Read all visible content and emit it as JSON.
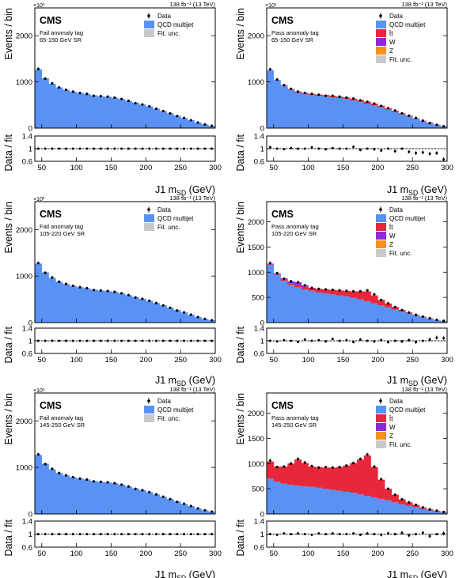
{
  "figure": {
    "experiment": "CMS",
    "lumi": "138 fb⁻¹ (13 TeV)",
    "scale_exp": "×10³",
    "ratio_ylabel": "Data / fit",
    "colors": {
      "qcd": "#5a92f4",
      "ttbar": "#e8283a",
      "w": "#8e2bd8",
      "z": "#f5921e",
      "unc": "#c9c9c9",
      "data": "#000000"
    }
  },
  "chart_data": [
    {
      "type": "bar",
      "title": "",
      "tag": "Fail anomaly tag",
      "window": "65-150 GeV SR",
      "xlabel": "J1 m_SD (GeV)",
      "ylabel": "Events / bin",
      "xlim": [
        40,
        300
      ],
      "ylim": [
        0,
        2600
      ],
      "yticks": [
        0,
        1000,
        2000
      ],
      "xticks": [
        50,
        100,
        150,
        200,
        250,
        300
      ],
      "ratio_ylim": [
        0.6,
        1.4
      ],
      "ratio_yticks": [
        0.6,
        1,
        1.4
      ],
      "legend": [
        "Data",
        "QCD multijet",
        "Fit. unc."
      ],
      "bin_edges": [
        40,
        50,
        60,
        70,
        80,
        90,
        100,
        110,
        120,
        130,
        140,
        150,
        160,
        170,
        180,
        190,
        200,
        210,
        220,
        230,
        240,
        250,
        260,
        270,
        280,
        290,
        300
      ],
      "series": [
        {
          "name": "QCD multijet",
          "values": [
            1270,
            1080,
            960,
            880,
            830,
            790,
            760,
            740,
            710,
            690,
            680,
            660,
            630,
            590,
            550,
            510,
            470,
            420,
            370,
            320,
            270,
            220,
            170,
            120,
            80,
            50
          ]
        }
      ],
      "data_points": [
        1280,
        1070,
        970,
        880,
        830,
        790,
        760,
        740,
        700,
        690,
        680,
        660,
        630,
        590,
        540,
        510,
        470,
        420,
        370,
        320,
        260,
        220,
        170,
        120,
        80,
        50
      ],
      "ratio": [
        1.0,
        1.0,
        1.0,
        1.0,
        1.0,
        1.0,
        1.0,
        1.0,
        1.0,
        1.0,
        1.0,
        1.0,
        1.0,
        1.0,
        1.0,
        1.0,
        1.0,
        1.0,
        1.0,
        1.0,
        1.0,
        1.0,
        1.0,
        1.0,
        1.0,
        1.0
      ]
    },
    {
      "type": "bar",
      "title": "",
      "tag": "Pass anomaly tag",
      "window": "65-150 GeV SR",
      "xlabel": "J1 m_SD (GeV)",
      "ylabel": "Events / bin",
      "xlim": [
        40,
        300
      ],
      "ylim": [
        0,
        2600
      ],
      "yticks": [
        0,
        1000,
        2000
      ],
      "xticks": [
        50,
        100,
        150,
        200,
        250,
        300
      ],
      "ratio_ylim": [
        0.6,
        1.4
      ],
      "ratio_yticks": [
        0.6,
        1,
        1.4
      ],
      "legend": [
        "Data",
        "QCD multijet",
        "t̄t",
        "W",
        "Z",
        "Fit. unc."
      ],
      "bin_edges": [
        40,
        50,
        60,
        70,
        80,
        90,
        100,
        110,
        120,
        130,
        140,
        150,
        160,
        170,
        180,
        190,
        200,
        210,
        220,
        230,
        240,
        250,
        260,
        270,
        280,
        290,
        300
      ],
      "series": [
        {
          "name": "QCD multijet",
          "values": [
            1250,
            1040,
            920,
            830,
            770,
            740,
            720,
            700,
            690,
            670,
            650,
            630,
            600,
            570,
            530,
            490,
            450,
            400,
            350,
            300,
            250,
            200,
            150,
            110,
            70,
            40
          ]
        },
        {
          "name": "t̄t",
          "values": [
            5,
            5,
            10,
            15,
            20,
            20,
            20,
            25,
            25,
            30,
            30,
            30,
            35,
            35,
            40,
            40,
            35,
            30,
            25,
            20,
            20,
            15,
            10,
            10,
            5,
            5
          ]
        },
        {
          "name": "W",
          "values": [
            0,
            0,
            0,
            2,
            5,
            4,
            0,
            0,
            0,
            0,
            0,
            0,
            0,
            0,
            0,
            0,
            0,
            0,
            0,
            0,
            0,
            0,
            0,
            0,
            0,
            0
          ]
        },
        {
          "name": "Z",
          "values": [
            0,
            0,
            0,
            0,
            0,
            2,
            5,
            3,
            0,
            0,
            0,
            0,
            0,
            0,
            0,
            0,
            0,
            0,
            0,
            0,
            0,
            0,
            0,
            0,
            0,
            0
          ]
        }
      ],
      "data_points": [
        1270,
        1050,
        930,
        850,
        790,
        760,
        740,
        720,
        700,
        700,
        680,
        660,
        640,
        600,
        570,
        530,
        480,
        430,
        380,
        320,
        270,
        220,
        160,
        110,
        70,
        40
      ],
      "ratio": [
        1.05,
        1.0,
        0.98,
        1.02,
        1.0,
        1.0,
        1.04,
        1.0,
        0.98,
        1.02,
        1.0,
        1.0,
        1.06,
        0.96,
        1.0,
        0.98,
        0.94,
        1.0,
        0.92,
        1.0,
        0.9,
        0.86,
        0.88,
        0.84,
        0.86,
        0.66
      ]
    },
    {
      "type": "bar",
      "title": "",
      "tag": "Fail anomaly tag",
      "window": "105-220 GeV SR",
      "xlabel": "J1 m_SD (GeV)",
      "ylabel": "Events / bin",
      "xlim": [
        40,
        300
      ],
      "ylim": [
        0,
        2600
      ],
      "yticks": [
        0,
        1000,
        2000
      ],
      "xticks": [
        50,
        100,
        150,
        200,
        250,
        300
      ],
      "ratio_ylim": [
        0.6,
        1.4
      ],
      "ratio_yticks": [
        0.6,
        1,
        1.4
      ],
      "legend": [
        "Data",
        "QCD multijet",
        "Fit. unc."
      ],
      "bin_edges": [
        40,
        50,
        60,
        70,
        80,
        90,
        100,
        110,
        120,
        130,
        140,
        150,
        160,
        170,
        180,
        190,
        200,
        210,
        220,
        230,
        240,
        250,
        260,
        270,
        280,
        290,
        300
      ],
      "series": [
        {
          "name": "QCD multijet",
          "values": [
            1270,
            1080,
            960,
            880,
            830,
            790,
            760,
            740,
            710,
            690,
            680,
            660,
            630,
            590,
            550,
            510,
            470,
            420,
            370,
            320,
            270,
            220,
            170,
            120,
            80,
            50
          ]
        }
      ],
      "data_points": [
        1280,
        1070,
        970,
        880,
        830,
        790,
        760,
        740,
        700,
        690,
        680,
        660,
        630,
        590,
        540,
        510,
        470,
        420,
        370,
        320,
        260,
        220,
        170,
        120,
        80,
        50
      ],
      "ratio": [
        1.0,
        1.0,
        1.0,
        1.0,
        1.0,
        1.0,
        1.0,
        1.0,
        1.0,
        1.0,
        1.0,
        1.0,
        1.0,
        1.0,
        1.0,
        1.0,
        1.0,
        1.0,
        1.0,
        1.0,
        1.0,
        1.0,
        1.0,
        1.0,
        1.0,
        1.0
      ]
    },
    {
      "type": "bar",
      "title": "",
      "tag": "Pass anomaly tag",
      "window": "105-220 GeV SR",
      "xlabel": "J1 m_SD (GeV)",
      "ylabel": "Events / bin",
      "xlim": [
        40,
        300
      ],
      "ylim": [
        0,
        2400
      ],
      "yticks": [
        0,
        500,
        1000,
        1500,
        2000
      ],
      "xticks": [
        50,
        100,
        150,
        200,
        250,
        300
      ],
      "ratio_ylim": [
        0.6,
        1.4
      ],
      "ratio_yticks": [
        0.6,
        1,
        1.4
      ],
      "legend": [
        "Data",
        "QCD multijet",
        "t̄t",
        "W",
        "Z",
        "Fit. unc."
      ],
      "bin_edges": [
        40,
        50,
        60,
        70,
        80,
        90,
        100,
        110,
        120,
        130,
        140,
        150,
        160,
        170,
        180,
        190,
        200,
        210,
        220,
        230,
        240,
        250,
        260,
        270,
        280,
        290,
        300
      ],
      "series": [
        {
          "name": "QCD multijet",
          "values": [
            1150,
            950,
            830,
            750,
            700,
            660,
            630,
            600,
            580,
            560,
            540,
            520,
            490,
            460,
            420,
            380,
            340,
            300,
            260,
            220,
            180,
            140,
            110,
            80,
            50,
            30
          ]
        },
        {
          "name": "t̄t",
          "values": [
            20,
            25,
            30,
            30,
            40,
            50,
            60,
            70,
            80,
            90,
            100,
            110,
            130,
            160,
            200,
            160,
            110,
            80,
            50,
            30,
            20,
            15,
            10,
            5,
            5,
            5
          ]
        },
        {
          "name": "W",
          "values": [
            0,
            0,
            20,
            40,
            60,
            30,
            0,
            0,
            0,
            0,
            0,
            0,
            0,
            0,
            0,
            0,
            0,
            0,
            0,
            0,
            0,
            0,
            0,
            0,
            0,
            0
          ]
        },
        {
          "name": "Z",
          "values": [
            0,
            0,
            0,
            0,
            0,
            0,
            0,
            0,
            0,
            0,
            0,
            0,
            0,
            0,
            0,
            0,
            0,
            0,
            0,
            0,
            0,
            0,
            0,
            0,
            0,
            0
          ]
        }
      ],
      "data_points": [
        1180,
        980,
        870,
        820,
        800,
        740,
        690,
        670,
        660,
        650,
        640,
        630,
        620,
        620,
        640,
        560,
        450,
        380,
        310,
        250,
        200,
        155,
        120,
        85,
        55,
        35
      ],
      "ratio": [
        1.0,
        0.98,
        1.02,
        1.0,
        0.96,
        1.04,
        1.0,
        1.02,
        0.98,
        1.06,
        1.0,
        1.02,
        0.96,
        1.04,
        1.0,
        0.98,
        1.02,
        0.96,
        1.0,
        0.98,
        1.02,
        0.96,
        1.0,
        1.04,
        1.1,
        1.08
      ]
    },
    {
      "type": "bar",
      "title": "",
      "tag": "Fail anomaly tag",
      "window": "145-250 GeV SR",
      "xlabel": "J1 m_SD (GeV)",
      "ylabel": "Events / bin",
      "xlim": [
        40,
        300
      ],
      "ylim": [
        0,
        2600
      ],
      "yticks": [
        0,
        1000,
        2000
      ],
      "xticks": [
        50,
        100,
        150,
        200,
        250,
        300
      ],
      "ratio_ylim": [
        0.6,
        1.4
      ],
      "ratio_yticks": [
        0.6,
        1,
        1.4
      ],
      "legend": [
        "Data",
        "QCD multijet",
        "Fit. unc."
      ],
      "bin_edges": [
        40,
        50,
        60,
        70,
        80,
        90,
        100,
        110,
        120,
        130,
        140,
        150,
        160,
        170,
        180,
        190,
        200,
        210,
        220,
        230,
        240,
        250,
        260,
        270,
        280,
        290,
        300
      ],
      "series": [
        {
          "name": "QCD multijet",
          "values": [
            1270,
            1080,
            960,
            880,
            830,
            790,
            760,
            740,
            710,
            690,
            680,
            660,
            630,
            590,
            550,
            510,
            470,
            420,
            370,
            320,
            270,
            220,
            170,
            120,
            80,
            50
          ]
        }
      ],
      "data_points": [
        1280,
        1070,
        970,
        880,
        830,
        790,
        760,
        740,
        700,
        690,
        680,
        660,
        630,
        590,
        540,
        510,
        470,
        420,
        370,
        320,
        260,
        220,
        170,
        120,
        80,
        50
      ],
      "ratio": [
        1.0,
        1.0,
        1.0,
        1.0,
        1.0,
        1.0,
        1.0,
        1.0,
        1.0,
        1.0,
        1.0,
        1.0,
        1.0,
        1.0,
        1.0,
        1.0,
        1.0,
        1.0,
        1.0,
        1.0,
        1.0,
        1.0,
        1.0,
        1.0,
        1.0,
        1.0
      ]
    },
    {
      "type": "bar",
      "title": "",
      "tag": "Pass anomaly tag",
      "window": "145-250 GeV SR",
      "xlabel": "J1 m_SD (GeV)",
      "ylabel": "Events / bin",
      "xlim": [
        40,
        300
      ],
      "ylim": [
        0,
        2400
      ],
      "yticks": [
        0,
        500,
        1000,
        1500,
        2000
      ],
      "xticks": [
        50,
        100,
        150,
        200,
        250,
        300
      ],
      "ratio_ylim": [
        0.6,
        1.4
      ],
      "ratio_yticks": [
        0.6,
        1,
        1.4
      ],
      "legend": [
        "Data",
        "QCD multijet",
        "t̄t",
        "W",
        "Z",
        "Fit. unc."
      ],
      "bin_edges": [
        40,
        50,
        60,
        70,
        80,
        90,
        100,
        110,
        120,
        130,
        140,
        150,
        160,
        170,
        180,
        190,
        200,
        210,
        220,
        230,
        240,
        250,
        260,
        270,
        280,
        290,
        300
      ],
      "series": [
        {
          "name": "QCD multijet",
          "values": [
            700,
            640,
            600,
            580,
            560,
            550,
            540,
            520,
            500,
            480,
            460,
            440,
            420,
            390,
            360,
            330,
            300,
            270,
            230,
            190,
            160,
            130,
            100,
            70,
            50,
            30
          ]
        },
        {
          "name": "t̄t",
          "values": [
            340,
            300,
            340,
            420,
            520,
            460,
            400,
            410,
            420,
            440,
            470,
            520,
            590,
            690,
            800,
            600,
            380,
            230,
            150,
            100,
            70,
            50,
            30,
            20,
            15,
            10
          ]
        },
        {
          "name": "W",
          "values": [
            0,
            0,
            0,
            0,
            0,
            0,
            0,
            0,
            0,
            0,
            0,
            0,
            0,
            0,
            0,
            0,
            0,
            0,
            0,
            0,
            0,
            0,
            0,
            0,
            0,
            0
          ]
        },
        {
          "name": "Z",
          "values": [
            0,
            0,
            0,
            0,
            0,
            0,
            0,
            0,
            0,
            0,
            0,
            0,
            0,
            0,
            0,
            0,
            0,
            0,
            0,
            0,
            0,
            0,
            0,
            0,
            0,
            0
          ]
        }
      ],
      "data_points": [
        1060,
        930,
        940,
        1000,
        1090,
        1020,
        950,
        920,
        930,
        920,
        930,
        960,
        1010,
        1090,
        1180,
        940,
        690,
        500,
        380,
        290,
        230,
        180,
        130,
        90,
        65,
        40
      ],
      "ratio": [
        1.0,
        0.98,
        1.02,
        1.0,
        1.02,
        1.0,
        0.98,
        1.02,
        1.0,
        1.02,
        1.0,
        1.0,
        1.02,
        0.98,
        1.02,
        1.0,
        0.98,
        1.02,
        1.0,
        1.04,
        0.96,
        1.0,
        1.04,
        0.94,
        1.0,
        1.02
      ]
    }
  ]
}
